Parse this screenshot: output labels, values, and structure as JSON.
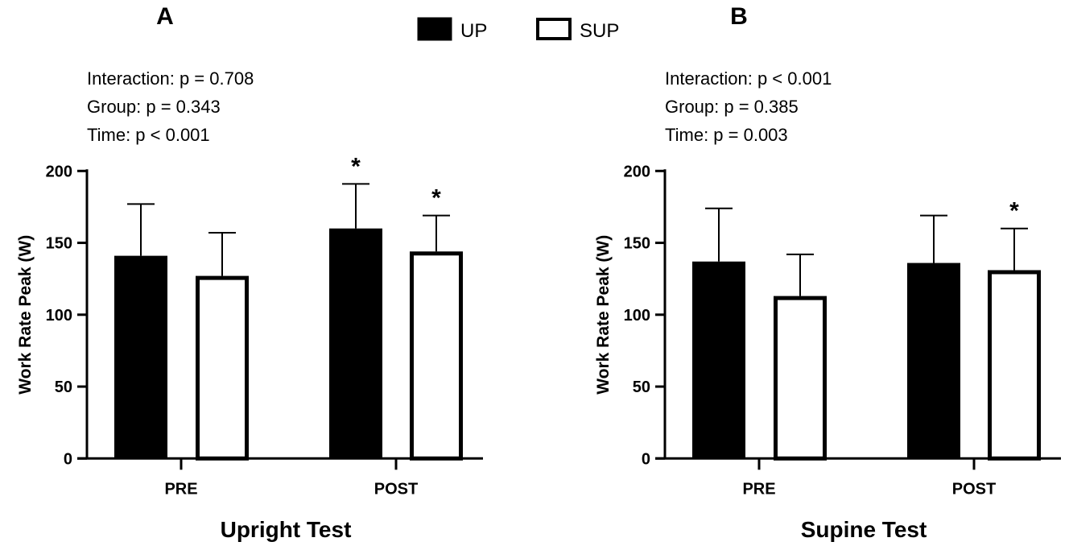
{
  "legend": [
    {
      "name": "UP",
      "fill": "#000000"
    },
    {
      "name": "SUP",
      "fill": "#ffffff"
    }
  ],
  "chart_data": [
    {
      "type": "bar",
      "panel": "A",
      "xlabel": "Upright Test",
      "ylabel": "Work Rate Peak (W)",
      "ylim": [
        0,
        200
      ],
      "yticks": [
        "0",
        "50",
        "100",
        "150",
        "200"
      ],
      "categories": [
        "PRE",
        "POST"
      ],
      "series": [
        {
          "name": "UP",
          "values": [
            141,
            160
          ],
          "errors": [
            36,
            31
          ],
          "sig": [
            "",
            "*"
          ]
        },
        {
          "name": "SUP",
          "values": [
            127,
            144
          ],
          "errors": [
            30,
            25
          ],
          "sig": [
            "",
            "*"
          ]
        }
      ],
      "stats": [
        "Interaction: p = 0.708",
        "Group: p = 0.343",
        "Time: p < 0.001"
      ]
    },
    {
      "type": "bar",
      "panel": "B",
      "xlabel": "Supine Test",
      "ylabel": "Work Rate Peak (W)",
      "ylim": [
        0,
        200
      ],
      "yticks": [
        "0",
        "50",
        "100",
        "150",
        "200"
      ],
      "categories": [
        "PRE",
        "POST"
      ],
      "series": [
        {
          "name": "UP",
          "values": [
            137,
            136
          ],
          "errors": [
            37,
            33
          ],
          "sig": [
            "",
            ""
          ]
        },
        {
          "name": "SUP",
          "values": [
            113,
            131
          ],
          "errors": [
            29,
            29
          ],
          "sig": [
            "",
            "*"
          ]
        }
      ],
      "stats": [
        "Interaction: p < 0.001",
        "Group: p = 0.385",
        "Time: p = 0.003"
      ]
    }
  ]
}
